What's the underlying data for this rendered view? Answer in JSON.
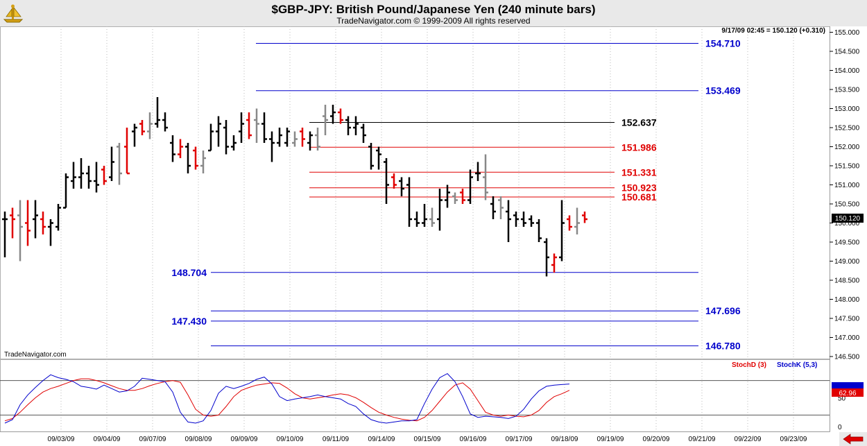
{
  "header": {
    "title": "$GBP-JPY:  British Pound/Japanese Yen  (240 minute bars)",
    "copyright": "TradeNavigator.com © 1999-2009 All rights reserved"
  },
  "watermark": "TradeNavigator.com",
  "quote_readout": "9/17/09 02:45 = 150.120 (+0.310)",
  "last_price_label": "150.120",
  "scroll_arrow_icon": "red-left-arrow-icon",
  "logo_icon": "gold-ship-wheel-icon",
  "colors": {
    "up_bar": "#000000",
    "down_bar": "#e00000",
    "neutral_bar": "#888888",
    "blue_level": "#0000cc",
    "red_level": "#e00000",
    "black_level": "#000000",
    "stoch_d": "#e00000",
    "stoch_k": "#0000cc",
    "header_bg": "#e9e9e9"
  },
  "chart_data": [
    {
      "type": "ohlc",
      "title": "$GBP-JPY:  British Pound/Japanese Yen  (240 minute bars)",
      "ylim": [
        146.5,
        155.0
      ],
      "y_ticks": [
        "146.500",
        "147.000",
        "147.500",
        "148.000",
        "148.500",
        "149.000",
        "149.500",
        "150.000",
        "150.500",
        "151.000",
        "151.500",
        "152.000",
        "152.500",
        "153.000",
        "153.500",
        "154.000",
        "154.500",
        "155.000"
      ],
      "x_ticks": [
        "09/03/09",
        "09/04/09",
        "09/07/09",
        "09/08/09",
        "09/09/09",
        "09/10/09",
        "09/11/09",
        "09/14/09",
        "09/15/09",
        "09/16/09",
        "09/17/09",
        "09/18/09",
        "09/19/09",
        "09/20/09",
        "09/21/09",
        "09/22/09",
        "09/23/09"
      ],
      "levels": [
        {
          "value": 154.71,
          "label": "154.710",
          "color": "blue",
          "x_from": 54.5,
          "x_to": 15.0
        },
        {
          "value": 153.469,
          "label": "153.469",
          "color": "blue",
          "x_from": 54.5,
          "x_to": 15.0
        },
        {
          "value": 152.637,
          "label": "152.637",
          "color": "black",
          "x_from": 67.0,
          "x_to": 13.0
        },
        {
          "value": 151.986,
          "label": "151.986",
          "color": "red",
          "x_from": 67.0,
          "x_to": 13.0
        },
        {
          "value": 151.331,
          "label": "151.331",
          "color": "red",
          "x_from": 67.0,
          "x_to": 13.0
        },
        {
          "value": 150.923,
          "label": "150.923",
          "color": "red",
          "x_from": 67.0,
          "x_to": 13.0
        },
        {
          "value": 150.681,
          "label": "150.681",
          "color": "red",
          "x_from": 67.0,
          "x_to": 13.0
        },
        {
          "value": 148.704,
          "label": "148.704",
          "color": "blue",
          "x_from": 45.0,
          "x_to": 15.0,
          "label_side": "left"
        },
        {
          "value": 147.696,
          "label": "147.696",
          "color": "blue",
          "x_from": 45.0,
          "x_to": 15.0
        },
        {
          "value": 147.43,
          "label": "147.430",
          "color": "blue",
          "x_from": 45.0,
          "x_to": 15.0,
          "label_side": "left"
        },
        {
          "value": 146.78,
          "label": "146.780",
          "color": "blue",
          "x_from": 45.0,
          "x_to": 15.0
        }
      ],
      "bars": [
        {
          "o": 150.1,
          "h": 150.3,
          "l": 149.1,
          "c": 150.1,
          "col": "k"
        },
        {
          "o": 150.2,
          "h": 150.4,
          "l": 149.6,
          "c": 150.1,
          "col": "r"
        },
        {
          "o": 150.2,
          "h": 150.6,
          "l": 149.0,
          "c": 149.9,
          "col": "g"
        },
        {
          "o": 150.0,
          "h": 150.6,
          "l": 149.4,
          "c": 149.8,
          "col": "r"
        },
        {
          "o": 150.1,
          "h": 150.6,
          "l": 149.6,
          "c": 150.2,
          "col": "k"
        },
        {
          "o": 150.1,
          "h": 150.3,
          "l": 149.7,
          "c": 149.9,
          "col": "r"
        },
        {
          "o": 149.9,
          "h": 150.1,
          "l": 149.4,
          "c": 150.0,
          "col": "k"
        },
        {
          "o": 149.9,
          "h": 150.5,
          "l": 149.8,
          "c": 150.4,
          "col": "k"
        },
        {
          "o": 150.4,
          "h": 151.3,
          "l": 150.4,
          "c": 151.2,
          "col": "k"
        },
        {
          "o": 151.1,
          "h": 151.6,
          "l": 150.9,
          "c": 151.2,
          "col": "k"
        },
        {
          "o": 151.2,
          "h": 151.7,
          "l": 150.9,
          "c": 151.3,
          "col": "k"
        },
        {
          "o": 151.3,
          "h": 151.5,
          "l": 150.9,
          "c": 151.1,
          "col": "k"
        },
        {
          "o": 151.1,
          "h": 151.6,
          "l": 150.8,
          "c": 151.0,
          "col": "k"
        },
        {
          "o": 151.4,
          "h": 151.5,
          "l": 151.0,
          "c": 151.1,
          "col": "r"
        },
        {
          "o": 151.2,
          "h": 152.0,
          "l": 151.1,
          "c": 151.6,
          "col": "k"
        },
        {
          "o": 152.0,
          "h": 152.1,
          "l": 151.0,
          "c": 151.3,
          "col": "g"
        },
        {
          "o": 152.0,
          "h": 152.5,
          "l": 151.3,
          "c": 151.3,
          "col": "r"
        },
        {
          "o": 152.4,
          "h": 152.6,
          "l": 152.0,
          "c": 152.5,
          "col": "k"
        },
        {
          "o": 152.6,
          "h": 152.7,
          "l": 152.3,
          "c": 152.4,
          "col": "r"
        },
        {
          "o": 152.4,
          "h": 152.9,
          "l": 152.2,
          "c": 152.6,
          "col": "g"
        },
        {
          "o": 152.6,
          "h": 153.3,
          "l": 152.5,
          "c": 152.7,
          "col": "k"
        },
        {
          "o": 152.7,
          "h": 152.9,
          "l": 152.4,
          "c": 152.5,
          "col": "k"
        },
        {
          "o": 152.1,
          "h": 152.3,
          "l": 151.6,
          "c": 151.8,
          "col": "k"
        },
        {
          "o": 151.8,
          "h": 152.2,
          "l": 151.7,
          "c": 152.0,
          "col": "r"
        },
        {
          "o": 152.0,
          "h": 152.1,
          "l": 151.3,
          "c": 151.5,
          "col": "k"
        },
        {
          "o": 151.9,
          "h": 152.0,
          "l": 151.4,
          "c": 151.5,
          "col": "r"
        },
        {
          "o": 151.5,
          "h": 151.9,
          "l": 151.3,
          "c": 151.7,
          "col": "g"
        },
        {
          "o": 151.9,
          "h": 152.6,
          "l": 151.9,
          "c": 152.4,
          "col": "k"
        },
        {
          "o": 152.4,
          "h": 152.8,
          "l": 152.0,
          "c": 152.6,
          "col": "k"
        },
        {
          "o": 152.5,
          "h": 152.7,
          "l": 151.8,
          "c": 152.0,
          "col": "k"
        },
        {
          "o": 152.0,
          "h": 152.3,
          "l": 151.9,
          "c": 152.1,
          "col": "k"
        },
        {
          "o": 152.4,
          "h": 152.9,
          "l": 152.1,
          "c": 152.6,
          "col": "k"
        },
        {
          "o": 152.7,
          "h": 152.9,
          "l": 152.2,
          "c": 152.3,
          "col": "r"
        },
        {
          "o": 152.7,
          "h": 153.0,
          "l": 152.1,
          "c": 152.6,
          "col": "g"
        },
        {
          "o": 152.6,
          "h": 152.9,
          "l": 152.1,
          "c": 152.2,
          "col": "k"
        },
        {
          "o": 152.2,
          "h": 152.4,
          "l": 151.6,
          "c": 152.1,
          "col": "k"
        },
        {
          "o": 152.1,
          "h": 152.5,
          "l": 152.0,
          "c": 152.3,
          "col": "k"
        },
        {
          "o": 152.1,
          "h": 152.5,
          "l": 152.0,
          "c": 152.4,
          "col": "k"
        },
        {
          "o": 152.1,
          "h": 152.4,
          "l": 152.0,
          "c": 152.2,
          "col": "g"
        },
        {
          "o": 152.4,
          "h": 152.5,
          "l": 152.0,
          "c": 152.2,
          "col": "r"
        },
        {
          "o": 152.1,
          "h": 152.4,
          "l": 151.9,
          "c": 152.3,
          "col": "k"
        },
        {
          "o": 152.3,
          "h": 152.5,
          "l": 151.9,
          "c": 152.0,
          "col": "g"
        },
        {
          "o": 152.8,
          "h": 153.1,
          "l": 152.3,
          "c": 152.7,
          "col": "g"
        },
        {
          "o": 152.8,
          "h": 153.1,
          "l": 152.6,
          "c": 152.9,
          "col": "k"
        },
        {
          "o": 152.9,
          "h": 153.0,
          "l": 152.6,
          "c": 152.7,
          "col": "r"
        },
        {
          "o": 152.7,
          "h": 152.8,
          "l": 152.3,
          "c": 152.5,
          "col": "k"
        },
        {
          "o": 152.5,
          "h": 152.8,
          "l": 152.3,
          "c": 152.6,
          "col": "k"
        },
        {
          "o": 152.5,
          "h": 152.6,
          "l": 152.1,
          "c": 152.3,
          "col": "k"
        },
        {
          "o": 152.0,
          "h": 152.1,
          "l": 151.4,
          "c": 151.5,
          "col": "k"
        },
        {
          "o": 151.9,
          "h": 152.0,
          "l": 151.4,
          "c": 151.8,
          "col": "k"
        },
        {
          "o": 151.6,
          "h": 151.7,
          "l": 150.5,
          "c": 151.0,
          "col": "k"
        },
        {
          "o": 151.2,
          "h": 151.3,
          "l": 150.9,
          "c": 151.0,
          "col": "r"
        },
        {
          "o": 151.1,
          "h": 151.2,
          "l": 150.7,
          "c": 150.9,
          "col": "k"
        },
        {
          "o": 151.0,
          "h": 151.2,
          "l": 149.9,
          "c": 150.1,
          "col": "k"
        },
        {
          "o": 150.1,
          "h": 150.3,
          "l": 149.9,
          "c": 150.0,
          "col": "k"
        },
        {
          "o": 150.0,
          "h": 150.5,
          "l": 149.9,
          "c": 150.1,
          "col": "k"
        },
        {
          "o": 150.1,
          "h": 150.4,
          "l": 149.9,
          "c": 150.0,
          "col": "g"
        },
        {
          "o": 150.1,
          "h": 150.9,
          "l": 149.8,
          "c": 150.6,
          "col": "k"
        },
        {
          "o": 150.6,
          "h": 151.0,
          "l": 150.4,
          "c": 150.8,
          "col": "k"
        },
        {
          "o": 150.7,
          "h": 150.8,
          "l": 150.5,
          "c": 150.6,
          "col": "g"
        },
        {
          "o": 150.8,
          "h": 150.9,
          "l": 150.5,
          "c": 150.6,
          "col": "r"
        },
        {
          "o": 150.6,
          "h": 151.4,
          "l": 150.5,
          "c": 151.2,
          "col": "k"
        },
        {
          "o": 151.3,
          "h": 151.6,
          "l": 151.1,
          "c": 151.3,
          "col": "k"
        },
        {
          "o": 151.2,
          "h": 151.8,
          "l": 150.6,
          "c": 150.8,
          "col": "g"
        },
        {
          "o": 150.5,
          "h": 150.7,
          "l": 150.1,
          "c": 150.3,
          "col": "k"
        },
        {
          "o": 150.6,
          "h": 150.7,
          "l": 150.1,
          "c": 150.4,
          "col": "g"
        },
        {
          "o": 150.3,
          "h": 150.6,
          "l": 149.5,
          "c": 150.1,
          "col": "k"
        },
        {
          "o": 150.2,
          "h": 150.3,
          "l": 149.9,
          "c": 150.1,
          "col": "k"
        },
        {
          "o": 150.1,
          "h": 150.3,
          "l": 149.9,
          "c": 150.0,
          "col": "k"
        },
        {
          "o": 150.1,
          "h": 150.2,
          "l": 149.9,
          "c": 150.0,
          "col": "k"
        },
        {
          "o": 150.0,
          "h": 150.1,
          "l": 149.5,
          "c": 149.6,
          "col": "k"
        },
        {
          "o": 149.5,
          "h": 149.6,
          "l": 148.6,
          "c": 149.1,
          "col": "k"
        },
        {
          "o": 148.9,
          "h": 149.2,
          "l": 148.7,
          "c": 149.1,
          "col": "r"
        },
        {
          "o": 149.1,
          "h": 150.6,
          "l": 149.0,
          "c": 150.0,
          "col": "k"
        },
        {
          "o": 150.1,
          "h": 150.2,
          "l": 149.8,
          "c": 149.9,
          "col": "r"
        },
        {
          "o": 149.9,
          "h": 150.4,
          "l": 149.7,
          "c": 150.0,
          "col": "g"
        },
        {
          "o": 150.2,
          "h": 150.3,
          "l": 150.0,
          "c": 150.1,
          "col": "r"
        }
      ]
    },
    {
      "type": "line",
      "ylim": [
        0,
        100
      ],
      "y_ticks": [
        "0",
        "50"
      ],
      "series": [
        {
          "name": "StochD (3)",
          "color": "red",
          "values": [
            10,
            14,
            25,
            38,
            50,
            60,
            66,
            70,
            75,
            80,
            83,
            83,
            80,
            76,
            71,
            66,
            63,
            63,
            66,
            71,
            75,
            78,
            80,
            77,
            55,
            30,
            20,
            18,
            20,
            35,
            52,
            63,
            68,
            72,
            74,
            76,
            75,
            67,
            57,
            50,
            48,
            50,
            52,
            55,
            57,
            55,
            50,
            42,
            33,
            25,
            20,
            16,
            13,
            11,
            10,
            16,
            28,
            44,
            60,
            72,
            76,
            65,
            45,
            25,
            20,
            18,
            20,
            18,
            17,
            20,
            28,
            42,
            52,
            57,
            63
          ]
        },
        {
          "name": "StochK (5,3)",
          "color": "blue",
          "values": [
            6,
            12,
            38,
            55,
            68,
            80,
            90,
            85,
            82,
            78,
            70,
            68,
            65,
            72,
            66,
            60,
            62,
            70,
            84,
            82,
            80,
            78,
            60,
            25,
            8,
            6,
            10,
            28,
            58,
            70,
            66,
            70,
            75,
            82,
            86,
            74,
            52,
            45,
            48,
            50,
            52,
            55,
            52,
            50,
            48,
            40,
            35,
            22,
            12,
            8,
            6,
            8,
            10,
            10,
            12,
            40,
            65,
            85,
            92,
            78,
            52,
            22,
            16,
            18,
            17,
            16,
            14,
            18,
            30,
            48,
            62,
            70,
            72,
            73,
            74
          ]
        }
      ]
    }
  ]
}
